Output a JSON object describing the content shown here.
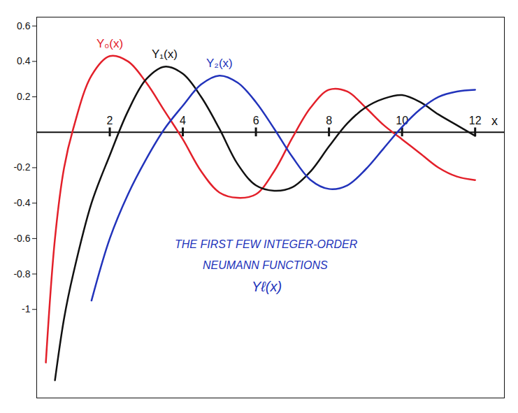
{
  "chart_data": {
    "type": "line",
    "xlabel": "x",
    "annotations": [
      "THE FIRST FEW INTEGER-ORDER",
      "NEUMANN FUNCTIONS",
      "Yℓ(x)"
    ],
    "x": [
      0.25,
      0.5,
      0.75,
      1,
      1.5,
      2,
      2.5,
      3,
      3.5,
      4,
      4.5,
      5,
      5.5,
      6,
      6.5,
      7,
      7.5,
      8,
      8.5,
      9,
      9.5,
      10,
      10.5,
      11,
      11.5,
      12
    ],
    "series": [
      {
        "name": "Y₀(x)",
        "color": "#e3202a",
        "values": [
          -1.3,
          -0.6,
          -0.2,
          0.02,
          0.32,
          0.43,
          0.4,
          0.28,
          0.12,
          -0.04,
          -0.22,
          -0.34,
          -0.37,
          -0.35,
          -0.22,
          -0.03,
          0.14,
          0.24,
          0.23,
          0.14,
          0.04,
          -0.04,
          -0.12,
          -0.2,
          -0.25,
          -0.27
        ]
      },
      {
        "name": "Y₁(x)",
        "color": "#111111",
        "values": [
          null,
          -1.4,
          -1.05,
          -0.8,
          -0.4,
          -0.13,
          0.12,
          0.3,
          0.37,
          0.33,
          0.2,
          0.02,
          -0.18,
          -0.3,
          -0.33,
          -0.31,
          -0.22,
          -0.08,
          0.05,
          0.14,
          0.19,
          0.21,
          0.17,
          0.1,
          0.04,
          -0.02
        ]
      },
      {
        "name": "Y₂(x)",
        "color": "#2233bb",
        "values": [
          null,
          null,
          null,
          null,
          -0.95,
          -0.6,
          -0.35,
          -0.15,
          0.02,
          0.15,
          0.27,
          0.32,
          0.28,
          0.17,
          0.02,
          -0.14,
          -0.27,
          -0.32,
          -0.3,
          -0.21,
          -0.09,
          0.03,
          0.13,
          0.2,
          0.23,
          0.24
        ]
      }
    ],
    "xlim": [
      0,
      12.8
    ],
    "ylim": [
      -1.5,
      0.65
    ],
    "xticks": [
      2,
      4,
      6,
      8,
      10,
      12
    ],
    "yticks": [
      0.6,
      0.4,
      0.2,
      -0.2,
      -0.4,
      -0.6,
      -0.8,
      -1
    ]
  }
}
